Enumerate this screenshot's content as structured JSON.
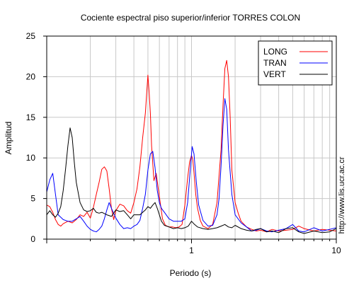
{
  "chart_data": {
    "type": "line",
    "title": "Cociente espectral piso superior/inferior  TORRES COLON",
    "xlabel": "Periodo (s)",
    "ylabel": "Amplitud",
    "xscale": "log",
    "xlim": [
      0.1,
      10
    ],
    "ylim": [
      0,
      25
    ],
    "x_tick_labels": [
      "1",
      "10"
    ],
    "y_tick_labels": [
      "0",
      "5",
      "10",
      "15",
      "20",
      "25"
    ],
    "grid": true,
    "legend_position": "top-right",
    "series": [
      {
        "name": "LONG",
        "color": "#ff0000",
        "x": [
          0.1,
          0.105,
          0.11,
          0.115,
          0.12,
          0.125,
          0.13,
          0.14,
          0.15,
          0.16,
          0.17,
          0.18,
          0.19,
          0.2,
          0.21,
          0.22,
          0.23,
          0.24,
          0.25,
          0.26,
          0.27,
          0.28,
          0.29,
          0.3,
          0.32,
          0.34,
          0.36,
          0.38,
          0.4,
          0.42,
          0.44,
          0.46,
          0.48,
          0.5,
          0.51,
          0.52,
          0.53,
          0.55,
          0.57,
          0.59,
          0.61,
          0.63,
          0.66,
          0.7,
          0.74,
          0.78,
          0.82,
          0.86,
          0.9,
          0.94,
          0.97,
          1.0,
          1.02,
          1.04,
          1.07,
          1.1,
          1.15,
          1.2,
          1.3,
          1.4,
          1.5,
          1.6,
          1.65,
          1.7,
          1.75,
          1.8,
          1.85,
          1.9,
          2.0,
          2.1,
          2.2,
          2.4,
          2.6,
          2.8,
          3.0,
          3.3,
          3.6,
          4.0,
          4.5,
          5.0,
          5.5,
          6.0,
          7.0,
          8.0,
          9.0,
          10.0
        ],
        "y": [
          4.2,
          4.0,
          3.3,
          2.4,
          1.8,
          1.6,
          1.9,
          2.2,
          2.0,
          2.4,
          3.0,
          2.8,
          3.3,
          2.6,
          3.9,
          5.5,
          7.0,
          8.6,
          8.9,
          8.4,
          6.2,
          3.8,
          2.4,
          3.5,
          4.3,
          4.1,
          3.5,
          3.2,
          4.5,
          6.2,
          8.9,
          12.5,
          15.5,
          20.2,
          18.0,
          15.5,
          11.5,
          7.2,
          8.1,
          6.2,
          4.3,
          2.5,
          1.7,
          1.5,
          1.5,
          1.4,
          1.5,
          1.8,
          4.2,
          7.5,
          9.5,
          10.3,
          9.8,
          8.2,
          5.5,
          3.8,
          2.3,
          1.6,
          1.3,
          1.8,
          4.5,
          11.0,
          16.5,
          21.0,
          22.0,
          20.0,
          15.0,
          8.5,
          4.5,
          3.2,
          2.2,
          1.5,
          1.2,
          1.0,
          1.1,
          0.9,
          1.2,
          1.0,
          1.1,
          1.2,
          1.6,
          1.3,
          1.0,
          1.2,
          1.1,
          1.0
        ]
      },
      {
        "name": "TRAN",
        "color": "#0000ff",
        "x": [
          0.1,
          0.105,
          0.11,
          0.115,
          0.12,
          0.13,
          0.14,
          0.15,
          0.16,
          0.17,
          0.18,
          0.19,
          0.2,
          0.21,
          0.22,
          0.23,
          0.24,
          0.25,
          0.26,
          0.27,
          0.28,
          0.3,
          0.32,
          0.34,
          0.36,
          0.38,
          0.4,
          0.42,
          0.44,
          0.46,
          0.48,
          0.5,
          0.52,
          0.54,
          0.56,
          0.58,
          0.6,
          0.62,
          0.65,
          0.7,
          0.75,
          0.8,
          0.85,
          0.9,
          0.94,
          0.98,
          1.01,
          1.04,
          1.08,
          1.12,
          1.2,
          1.3,
          1.4,
          1.5,
          1.55,
          1.6,
          1.65,
          1.7,
          1.75,
          1.8,
          1.9,
          2.0,
          2.2,
          2.4,
          2.6,
          2.8,
          3.0,
          3.3,
          3.6,
          4.0,
          4.5,
          5.0,
          5.5,
          6.0,
          7.0,
          8.0,
          9.0,
          10.0
        ],
        "y": [
          5.8,
          7.3,
          8.1,
          5.5,
          3.0,
          2.4,
          2.2,
          2.2,
          2.5,
          2.8,
          2.2,
          1.6,
          1.2,
          1.0,
          0.9,
          1.2,
          1.6,
          2.5,
          3.6,
          4.5,
          3.8,
          2.6,
          1.8,
          1.3,
          1.4,
          1.3,
          1.6,
          1.8,
          2.3,
          3.8,
          5.5,
          8.5,
          10.5,
          10.8,
          8.8,
          6.0,
          4.5,
          3.8,
          3.3,
          2.5,
          2.2,
          2.2,
          2.2,
          2.5,
          4.5,
          8.5,
          11.4,
          10.5,
          7.0,
          4.2,
          2.3,
          1.6,
          1.7,
          3.0,
          5.0,
          9.0,
          14.0,
          17.3,
          16.0,
          11.0,
          5.5,
          3.0,
          2.0,
          1.5,
          1.0,
          1.1,
          1.3,
          1.0,
          0.9,
          1.1,
          1.3,
          1.8,
          1.0,
          0.9,
          1.4,
          1.0,
          1.2,
          1.4
        ]
      },
      {
        "name": "VERT",
        "color": "#000000",
        "x": [
          0.1,
          0.105,
          0.11,
          0.115,
          0.12,
          0.125,
          0.13,
          0.135,
          0.14,
          0.145,
          0.15,
          0.155,
          0.16,
          0.17,
          0.18,
          0.19,
          0.2,
          0.21,
          0.22,
          0.23,
          0.24,
          0.26,
          0.28,
          0.3,
          0.32,
          0.34,
          0.36,
          0.38,
          0.4,
          0.42,
          0.44,
          0.46,
          0.48,
          0.5,
          0.52,
          0.54,
          0.56,
          0.58,
          0.6,
          0.62,
          0.65,
          0.7,
          0.75,
          0.8,
          0.85,
          0.9,
          0.95,
          1.0,
          1.05,
          1.1,
          1.2,
          1.3,
          1.4,
          1.5,
          1.6,
          1.7,
          1.8,
          1.9,
          2.0,
          2.2,
          2.4,
          2.6,
          2.8,
          3.0,
          3.3,
          3.6,
          4.0,
          4.5,
          5.0,
          5.5,
          6.0,
          7.0,
          8.0,
          9.0,
          10.0
        ],
        "y": [
          3.0,
          3.5,
          3.0,
          2.7,
          3.2,
          4.0,
          6.0,
          8.7,
          11.5,
          13.7,
          12.5,
          9.5,
          7.0,
          4.5,
          3.6,
          3.4,
          3.5,
          3.8,
          3.3,
          3.2,
          3.3,
          3.0,
          2.8,
          3.6,
          3.4,
          3.5,
          3.0,
          2.5,
          3.0,
          3.0,
          3.0,
          3.3,
          3.6,
          4.0,
          3.8,
          4.2,
          4.5,
          3.8,
          3.0,
          2.2,
          1.7,
          1.5,
          1.3,
          1.4,
          1.3,
          1.4,
          1.6,
          2.2,
          1.8,
          1.5,
          1.3,
          1.2,
          1.3,
          1.4,
          1.6,
          1.8,
          1.5,
          1.4,
          1.7,
          1.3,
          1.1,
          1.0,
          1.2,
          1.3,
          0.9,
          1.0,
          0.8,
          1.3,
          1.4,
          0.9,
          0.7,
          1.0,
          0.8,
          0.9,
          1.3
        ]
      }
    ]
  },
  "side_text": "http://www.lis.ucr.ac.cr"
}
